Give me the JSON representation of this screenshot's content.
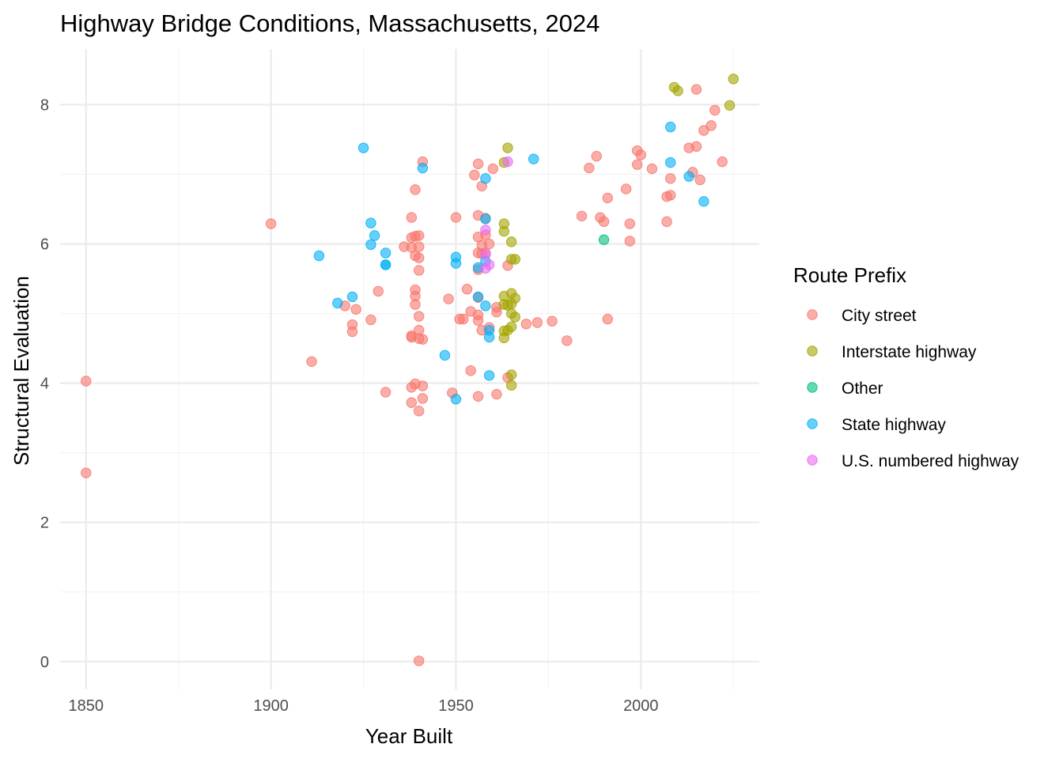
{
  "chart_data": {
    "type": "scatter",
    "title": "Highway Bridge Conditions, Massachusetts, 2024",
    "xlabel": "Year Built",
    "ylabel": "Structural Evaluation",
    "xlim": [
      1843,
      2032
    ],
    "ylim": [
      -0.4,
      8.8
    ],
    "x_ticks": [
      1850,
      1900,
      1950,
      2000
    ],
    "y_ticks": [
      0,
      2,
      4,
      6,
      8
    ],
    "grid": true,
    "legend": {
      "title": "Route Prefix",
      "position": "right"
    },
    "series": [
      {
        "name": "City street",
        "color": "#F8766D",
        "points": [
          [
            1850,
            4.03
          ],
          [
            1850,
            2.71
          ],
          [
            1900,
            6.29
          ],
          [
            1911,
            4.31
          ],
          [
            1920,
            5.11
          ],
          [
            1922,
            4.84
          ],
          [
            1922,
            4.74
          ],
          [
            1923,
            5.06
          ],
          [
            1927,
            4.91
          ],
          [
            1929,
            5.32
          ],
          [
            1931,
            3.87
          ],
          [
            1936,
            5.96
          ],
          [
            1938,
            6.38
          ],
          [
            1938,
            6.09
          ],
          [
            1938,
            5.95
          ],
          [
            1938,
            4.66
          ],
          [
            1938,
            4.68
          ],
          [
            1938,
            3.94
          ],
          [
            1938,
            3.72
          ],
          [
            1939,
            5.25
          ],
          [
            1939,
            5.13
          ],
          [
            1939,
            6.11
          ],
          [
            1939,
            6.78
          ],
          [
            1939,
            5.83
          ],
          [
            1939,
            5.34
          ],
          [
            1939,
            3.99
          ],
          [
            1940,
            6.12
          ],
          [
            1940,
            5.8
          ],
          [
            1940,
            5.96
          ],
          [
            1940,
            5.62
          ],
          [
            1940,
            4.96
          ],
          [
            1940,
            4.76
          ],
          [
            1940,
            4.64
          ],
          [
            1940,
            3.6
          ],
          [
            1940,
            0.01
          ],
          [
            1941,
            4.63
          ],
          [
            1941,
            3.78
          ],
          [
            1941,
            3.96
          ],
          [
            1941,
            7.18
          ],
          [
            1948,
            5.21
          ],
          [
            1949,
            3.86
          ],
          [
            1950,
            6.38
          ],
          [
            1951,
            4.92
          ],
          [
            1952,
            4.92
          ],
          [
            1953,
            5.35
          ],
          [
            1954,
            4.18
          ],
          [
            1954,
            5.03
          ],
          [
            1955,
            6.99
          ],
          [
            1956,
            7.15
          ],
          [
            1956,
            6.41
          ],
          [
            1956,
            6.1
          ],
          [
            1956,
            5.87
          ],
          [
            1956,
            5.63
          ],
          [
            1956,
            5.23
          ],
          [
            1956,
            4.98
          ],
          [
            1956,
            4.9
          ],
          [
            1956,
            3.81
          ],
          [
            1957,
            6.83
          ],
          [
            1957,
            5.86
          ],
          [
            1957,
            5.98
          ],
          [
            1957,
            4.76
          ],
          [
            1958,
            6.37
          ],
          [
            1958,
            6.13
          ],
          [
            1958,
            5.87
          ],
          [
            1959,
            6.0
          ],
          [
            1959,
            4.8
          ],
          [
            1960,
            7.08
          ],
          [
            1961,
            5.09
          ],
          [
            1961,
            5.02
          ],
          [
            1961,
            3.84
          ],
          [
            1964,
            5.69
          ],
          [
            1964,
            4.08
          ],
          [
            1969,
            4.85
          ],
          [
            1972,
            4.87
          ],
          [
            1976,
            4.89
          ],
          [
            1980,
            4.61
          ],
          [
            1984,
            6.4
          ],
          [
            1986,
            7.09
          ],
          [
            1988,
            7.26
          ],
          [
            1989,
            6.38
          ],
          [
            1990,
            6.32
          ],
          [
            1991,
            6.66
          ],
          [
            1991,
            4.92
          ],
          [
            1996,
            6.79
          ],
          [
            1997,
            6.29
          ],
          [
            1997,
            6.04
          ],
          [
            1999,
            7.34
          ],
          [
            1999,
            7.14
          ],
          [
            2000,
            7.28
          ],
          [
            2003,
            7.08
          ],
          [
            2007,
            6.32
          ],
          [
            2007,
            6.68
          ],
          [
            2008,
            6.7
          ],
          [
            2008,
            6.94
          ],
          [
            2013,
            7.38
          ],
          [
            2014,
            7.03
          ],
          [
            2015,
            8.22
          ],
          [
            2015,
            7.4
          ],
          [
            2016,
            6.92
          ],
          [
            2017,
            7.63
          ],
          [
            2019,
            7.7
          ],
          [
            2020,
            7.92
          ],
          [
            2022,
            7.18
          ]
        ]
      },
      {
        "name": "Interstate highway",
        "color": "#A3A500",
        "points": [
          [
            1963,
            7.17
          ],
          [
            1963,
            6.29
          ],
          [
            1963,
            6.18
          ],
          [
            1963,
            5.25
          ],
          [
            1963,
            5.13
          ],
          [
            1963,
            4.75
          ],
          [
            1963,
            4.65
          ],
          [
            1964,
            7.38
          ],
          [
            1964,
            5.12
          ],
          [
            1964,
            4.76
          ],
          [
            1965,
            6.03
          ],
          [
            1965,
            5.78
          ],
          [
            1965,
            5.29
          ],
          [
            1965,
            5.14
          ],
          [
            1965,
            5.0
          ],
          [
            1965,
            4.81
          ],
          [
            1965,
            4.12
          ],
          [
            1965,
            3.97
          ],
          [
            1966,
            5.78
          ],
          [
            1966,
            5.22
          ],
          [
            1966,
            4.95
          ],
          [
            2009,
            8.25
          ],
          [
            2010,
            8.2
          ],
          [
            2024,
            7.99
          ],
          [
            2025,
            8.37
          ]
        ]
      },
      {
        "name": "Other",
        "color": "#00BF7D",
        "points": [
          [
            1990,
            6.06
          ]
        ]
      },
      {
        "name": "State highway",
        "color": "#00B0F6",
        "points": [
          [
            1913,
            5.83
          ],
          [
            1918,
            5.15
          ],
          [
            1922,
            5.24
          ],
          [
            1925,
            7.38
          ],
          [
            1927,
            6.3
          ],
          [
            1927,
            5.99
          ],
          [
            1928,
            6.12
          ],
          [
            1931,
            5.87
          ],
          [
            1931,
            5.7
          ],
          [
            1931,
            5.7
          ],
          [
            1941,
            7.09
          ],
          [
            1947,
            4.4
          ],
          [
            1950,
            5.81
          ],
          [
            1950,
            5.72
          ],
          [
            1950,
            3.77
          ],
          [
            1956,
            5.66
          ],
          [
            1956,
            5.24
          ],
          [
            1958,
            6.94
          ],
          [
            1958,
            6.36
          ],
          [
            1958,
            5.75
          ],
          [
            1958,
            5.11
          ],
          [
            1959,
            4.76
          ],
          [
            1959,
            4.66
          ],
          [
            1959,
            4.11
          ],
          [
            1971,
            7.22
          ],
          [
            2008,
            7.68
          ],
          [
            2008,
            7.17
          ],
          [
            2013,
            6.97
          ],
          [
            2017,
            6.61
          ]
        ]
      },
      {
        "name": "U.S. numbered highway",
        "color": "#E76BF3",
        "points": [
          [
            1958,
            6.2
          ],
          [
            1958,
            5.85
          ],
          [
            1958,
            5.65
          ],
          [
            1959,
            5.7
          ],
          [
            1964,
            7.18
          ]
        ]
      }
    ]
  }
}
